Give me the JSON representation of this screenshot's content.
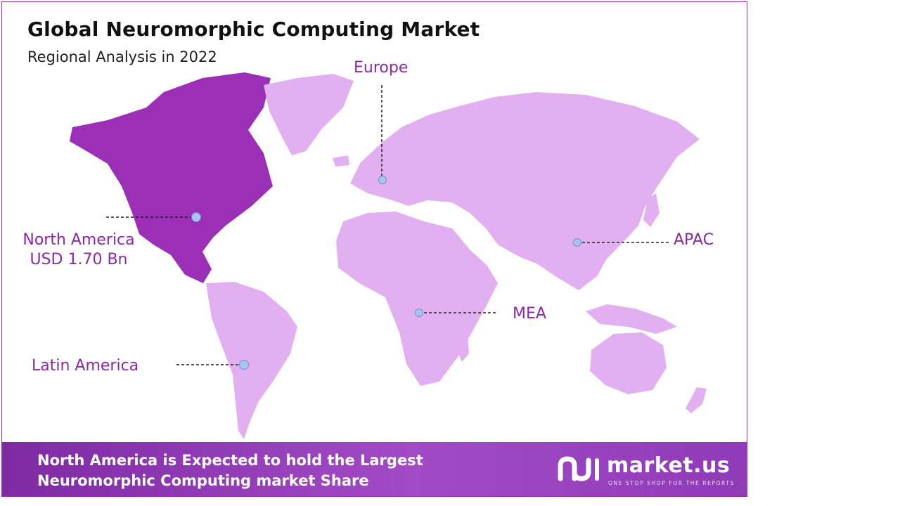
{
  "title": "Global Neuromorphic Computing Market",
  "subtitle": "Regional Analysis in 2022",
  "regions": {
    "north_america": {
      "name": "North America",
      "value": "USD 1.70 Bn"
    },
    "europe": {
      "name": "Europe"
    },
    "apac": {
      "name": "APAC"
    },
    "mea": {
      "name": "MEA"
    },
    "latin_america": {
      "name": "Latin America"
    }
  },
  "footer": {
    "line1": "North America is Expected to hold the Largest",
    "line2": "Neuromorphic Computing market Share"
  },
  "brand": {
    "name": "market.us",
    "tagline": "ONE STOP SHOP FOR THE REPORTS"
  },
  "colors": {
    "highlight_region": "#9b2fb5",
    "other_regions": "#e2aff0",
    "label_text": "#8b28a8",
    "marker": "#a9c4ec",
    "footer_bg": "#8f3ab8"
  }
}
